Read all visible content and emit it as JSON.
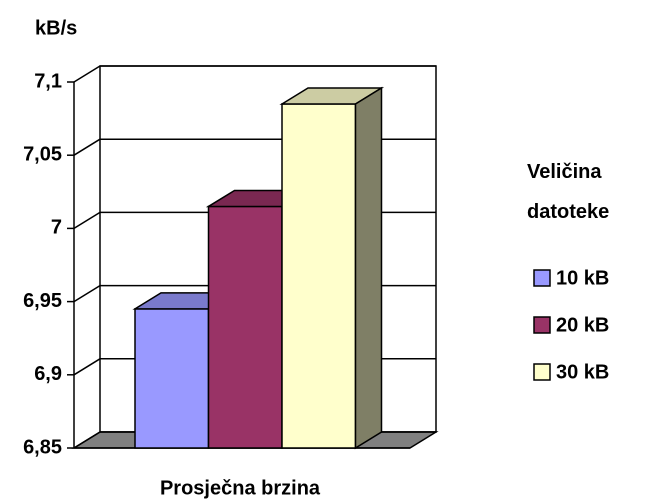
{
  "chart_data": {
    "type": "bar3d",
    "y_label": "kB/s",
    "categories": [
      "Prosječna brzina"
    ],
    "legend_title": "Veličina datoteke",
    "series": [
      {
        "name": "10 kB",
        "color": "#9999ff",
        "values": [
          6.945
        ]
      },
      {
        "name": "20 kB",
        "color": "#993366",
        "values": [
          7.015
        ]
      },
      {
        "name": "30 kB",
        "color": "#ffffcc",
        "values": [
          7.085
        ]
      }
    ],
    "ylim": [
      6.85,
      7.1
    ],
    "yticks": [
      {
        "value": 6.85,
        "label": "6,85"
      },
      {
        "value": 6.9,
        "label": "6,9"
      },
      {
        "value": 6.95,
        "label": "6,95"
      },
      7,
      {
        "value": 7.05,
        "label": "7,05"
      },
      {
        "value": 7.1,
        "label": "7,1"
      }
    ],
    "grid": true,
    "legend": "right"
  }
}
